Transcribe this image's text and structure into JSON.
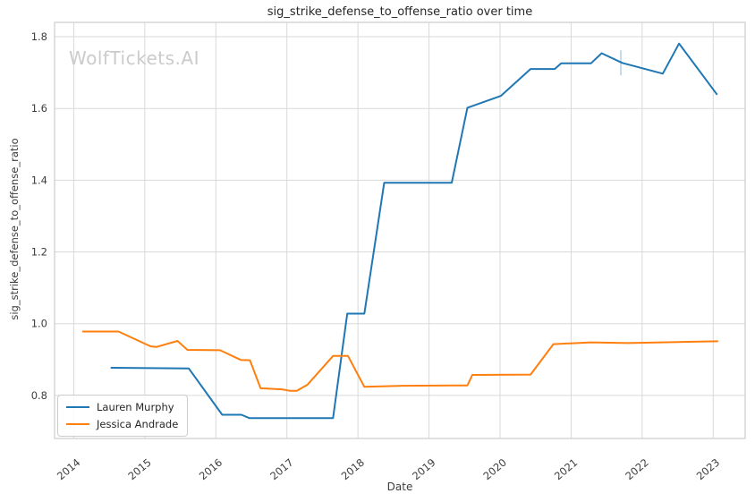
{
  "title": "sig_strike_defense_to_offense_ratio over time",
  "watermark": "WolfTickets.AI",
  "axes": {
    "x_label": "Date",
    "y_label": "sig_strike_defense_to_offense_ratio",
    "x_ticks": [
      2014,
      2015,
      2016,
      2017,
      2018,
      2019,
      2020,
      2021,
      2022,
      2023
    ],
    "y_ticks": [
      0.8,
      1.0,
      1.2,
      1.4,
      1.6,
      1.8
    ]
  },
  "colors": {
    "grid": "#d9d9d9",
    "spine": "#cccccc",
    "tick_text": "#3d3d3d",
    "series_blue": "#1f77b4",
    "series_orange": "#ff7f0e"
  },
  "chart_data": {
    "type": "line",
    "title": "sig_strike_defense_to_offense_ratio over time",
    "xlabel": "Date",
    "ylabel": "sig_strike_defense_to_offense_ratio",
    "x_range": [
      2013.73,
      2023.45
    ],
    "y_range": [
      0.68,
      1.84
    ],
    "grid": true,
    "legend_position": "lower left",
    "series": [
      {
        "name": "Lauren Murphy",
        "color": "#1f77b4",
        "points": [
          [
            2014.53,
            0.877
          ],
          [
            2015.62,
            0.875
          ],
          [
            2016.09,
            0.746
          ],
          [
            2016.36,
            0.746
          ],
          [
            2016.47,
            0.737
          ],
          [
            2017.65,
            0.737
          ],
          [
            2017.85,
            1.028
          ],
          [
            2018.09,
            1.028
          ],
          [
            2018.37,
            1.393
          ],
          [
            2019.32,
            1.393
          ],
          [
            2019.54,
            1.602
          ],
          [
            2020.01,
            1.635
          ],
          [
            2020.43,
            1.71
          ],
          [
            2020.77,
            1.71
          ],
          [
            2020.86,
            1.726
          ],
          [
            2021.28,
            1.726
          ],
          [
            2021.43,
            1.754
          ],
          [
            2021.72,
            1.727
          ],
          [
            2022.29,
            1.697
          ],
          [
            2022.52,
            1.781
          ],
          [
            2023.05,
            1.64
          ]
        ]
      },
      {
        "name": "Jessica Andrade",
        "color": "#ff7f0e",
        "points": [
          [
            2014.13,
            0.978
          ],
          [
            2014.63,
            0.978
          ],
          [
            2015.08,
            0.937
          ],
          [
            2015.16,
            0.935
          ],
          [
            2015.46,
            0.952
          ],
          [
            2015.6,
            0.927
          ],
          [
            2016.06,
            0.926
          ],
          [
            2016.35,
            0.899
          ],
          [
            2016.48,
            0.898
          ],
          [
            2016.63,
            0.82
          ],
          [
            2016.93,
            0.817
          ],
          [
            2017.04,
            0.813
          ],
          [
            2017.14,
            0.813
          ],
          [
            2017.29,
            0.83
          ],
          [
            2017.65,
            0.91
          ],
          [
            2017.86,
            0.91
          ],
          [
            2018.09,
            0.824
          ],
          [
            2018.62,
            0.827
          ],
          [
            2019.54,
            0.828
          ],
          [
            2019.61,
            0.857
          ],
          [
            2020.43,
            0.858
          ],
          [
            2020.75,
            0.943
          ],
          [
            2021.28,
            0.948
          ],
          [
            2021.8,
            0.946
          ],
          [
            2022.5,
            0.949
          ],
          [
            2023.06,
            0.951
          ]
        ]
      }
    ],
    "marker": {
      "type": "vertical-tick",
      "x": 2021.7,
      "y": 1.727,
      "half_height_value": 0.035,
      "color": "rgba(31,119,180,0.35)"
    }
  }
}
